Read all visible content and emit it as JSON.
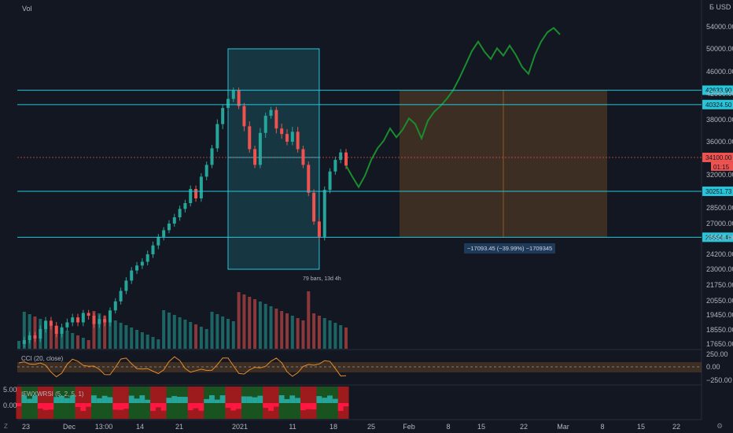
{
  "header": {
    "vol_label": "Vol",
    "currency": "USD",
    "currency_prefix": "Б"
  },
  "chart_data": {
    "type": "candlestick",
    "price_axis_ticks": [
      54000,
      50000,
      46000,
      42000,
      38000,
      36000,
      32000,
      28500,
      27000,
      25500,
      24200,
      23000,
      21750,
      20550,
      19450,
      18550,
      17650
    ],
    "price_axis_tick_labels": [
      "54000.00",
      "50000.00",
      "46000.00",
      "42000.00",
      "38000.00",
      "36000.00",
      "32000.00",
      "28500.00",
      "27000.00",
      "25500.00",
      "24200.00",
      "23000.00",
      "21750.00",
      "20550.00",
      "19450.00",
      "18550.00",
      "17650.00"
    ],
    "date_labels": [
      "23",
      "Dec",
      "13:00",
      "14",
      "21",
      "2021",
      "11",
      "18",
      "25",
      "Feb",
      "8",
      "15",
      "22",
      "Mar",
      "8",
      "15",
      "22"
    ],
    "horizontal_levels": [
      {
        "value": 42633.9,
        "label": "42633.90",
        "color": "#26c6da"
      },
      {
        "value": 40324.5,
        "label": "40324.50",
        "color": "#26c6da"
      },
      {
        "value": 30251.73,
        "label": "30251.73",
        "color": "#26c6da"
      },
      {
        "value": 25554.45,
        "label": "25554.45",
        "color": "#26c6da"
      }
    ],
    "current_price": {
      "label": "34100.00",
      "countdown": "01:15",
      "color": "#ef5350"
    },
    "range_annotation": {
      "label": "79 bars, 13d 4h"
    },
    "measure_annotation": {
      "label": "−17093.45 (−39.99%) −1709345"
    },
    "price_path_description": "rise from ~17650 to ~42000 then drop to ~25500 then rally to ~54000",
    "price_series": [
      17650,
      17900,
      18200,
      18000,
      18600,
      19100,
      18800,
      18300,
      18700,
      19000,
      19300,
      19000,
      19600,
      19400,
      18900,
      19200,
      19000,
      19800,
      20500,
      21300,
      22100,
      22900,
      23300,
      23600,
      24200,
      24900,
      25600,
      26300,
      27000,
      27600,
      28400,
      29000,
      30500,
      29500,
      31800,
      33200,
      35200,
      37600,
      39800,
      41200,
      42600,
      40100,
      37400,
      35100,
      33200,
      36800,
      38600,
      39500,
      37200,
      36700,
      36000,
      36900,
      35100,
      33200,
      30100,
      27200,
      25600,
      30400,
      32400,
      33800,
      34700,
      33100,
      31800,
      30700,
      31900,
      33800,
      35200,
      36100,
      37200,
      36400,
      37100,
      38200,
      37600,
      36300,
      37900,
      39200,
      40100,
      41200,
      42600,
      44800,
      47200,
      49600,
      51300,
      49500,
      48200,
      50100,
      48800,
      50600,
      48900,
      46800,
      45600,
      48900,
      51300,
      53000,
      54200,
      52600
    ],
    "series_colors": {
      "up": "#26a69a",
      "down": "#ef5350",
      "projection": "#1b8c2e"
    },
    "cci": {
      "title": "CCI (20, close)",
      "ticks": [
        "250.00",
        "0.00",
        "−250.00"
      ]
    },
    "ifwxwrsi": {
      "title": "IFWXWRSI (5, 2, 5, 1)",
      "ticks": [
        "5.00",
        "0.00"
      ]
    }
  }
}
